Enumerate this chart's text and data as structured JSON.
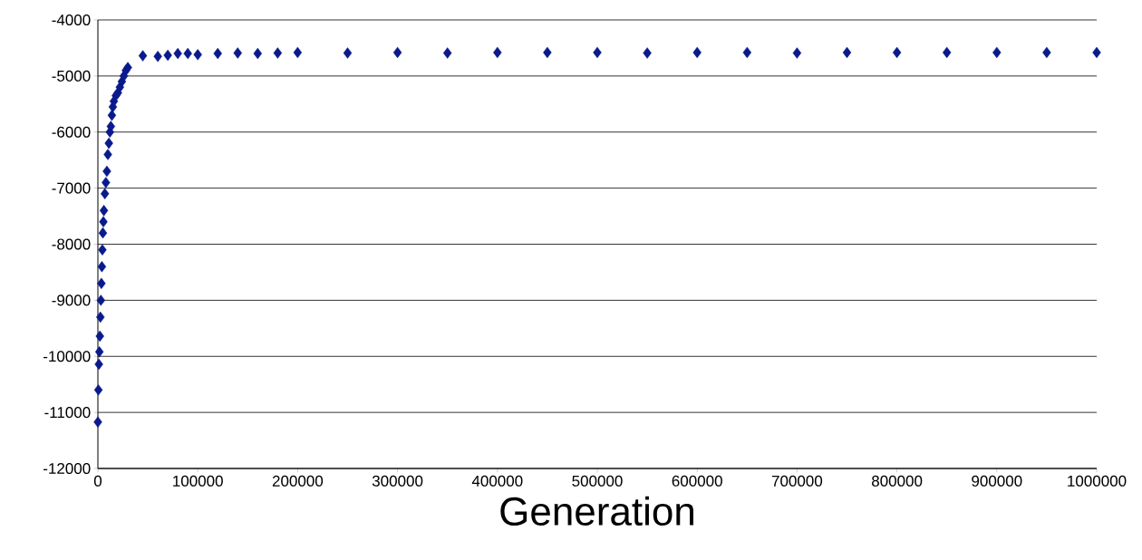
{
  "chart_data": {
    "type": "scatter",
    "xlabel": "Generation",
    "marker": "diamond",
    "grid": "y",
    "xlim": [
      0,
      1000000
    ],
    "ylim": [
      -12000,
      -4000
    ],
    "xticks": [
      0,
      100000,
      200000,
      300000,
      400000,
      500000,
      600000,
      700000,
      800000,
      900000,
      1000000
    ],
    "yticks": [
      -12000,
      -11000,
      -10000,
      -9000,
      -8000,
      -7000,
      -6000,
      -5000,
      -4000
    ],
    "series": [
      {
        "color": "#0a1a8c",
        "x": [
          0,
          500,
          1000,
          1500,
          2000,
          2500,
          3000,
          3500,
          4000,
          4500,
          5000,
          5500,
          6000,
          7000,
          8000,
          9000,
          10000,
          11000,
          12000,
          13000,
          14000,
          15000,
          16000,
          18000,
          20000,
          22000,
          24000,
          26000,
          28000,
          30000,
          45000,
          60000,
          70000,
          80000,
          90000,
          100000,
          120000,
          140000,
          160000,
          180000,
          200000,
          250000,
          300000,
          350000,
          400000,
          450000,
          500000,
          550000,
          600000,
          650000,
          700000,
          750000,
          800000,
          850000,
          900000,
          950000,
          1000000
        ],
        "values": [
          -11170,
          -10600,
          -10140,
          -9920,
          -9640,
          -9300,
          -9000,
          -8700,
          -8400,
          -8100,
          -7800,
          -7600,
          -7400,
          -7100,
          -6900,
          -6700,
          -6400,
          -6200,
          -6000,
          -5900,
          -5700,
          -5550,
          -5450,
          -5350,
          -5300,
          -5200,
          -5100,
          -5000,
          -4900,
          -4850,
          -4640,
          -4650,
          -4630,
          -4600,
          -4600,
          -4620,
          -4600,
          -4590,
          -4600,
          -4590,
          -4580,
          -4590,
          -4580,
          -4590,
          -4580,
          -4580,
          -4580,
          -4590,
          -4580,
          -4580,
          -4590,
          -4580,
          -4580,
          -4580,
          -4580,
          -4580,
          -4580
        ]
      }
    ]
  }
}
